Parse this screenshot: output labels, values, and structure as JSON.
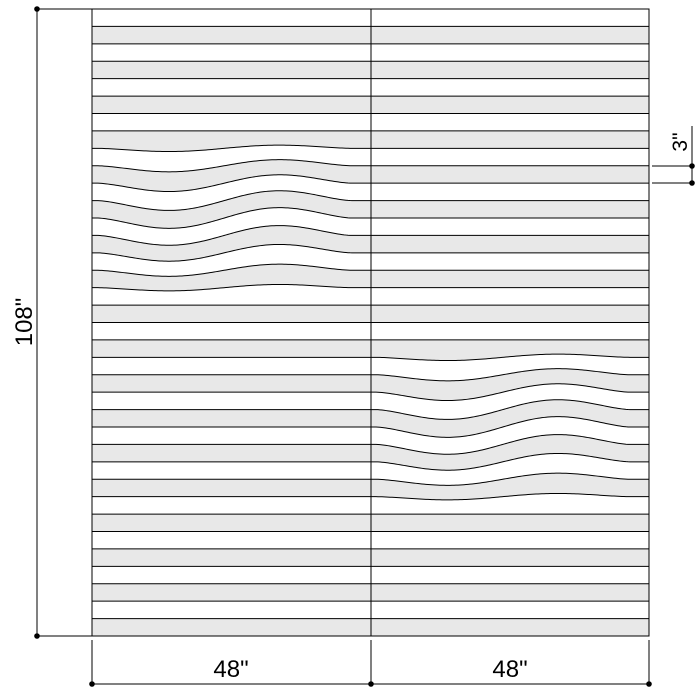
{
  "dimensions": {
    "height_label": "108\"",
    "width_left_label": "48\"",
    "width_right_label": "48\"",
    "stripe_label": "3\""
  },
  "panel": {
    "total_height_in": 108,
    "panel_width_in": 48,
    "panel_count": 2,
    "stripe_height_in": 3,
    "stripe_count": 36,
    "fill_color": "#e8e8e8",
    "background_color": "#ffffff",
    "line_color": "#000000"
  },
  "waves": [
    {
      "panel": 1,
      "first_stripe": 7,
      "last_stripe": 17
    },
    {
      "panel": 2,
      "first_stripe": 19,
      "last_stripe": 29
    }
  ]
}
